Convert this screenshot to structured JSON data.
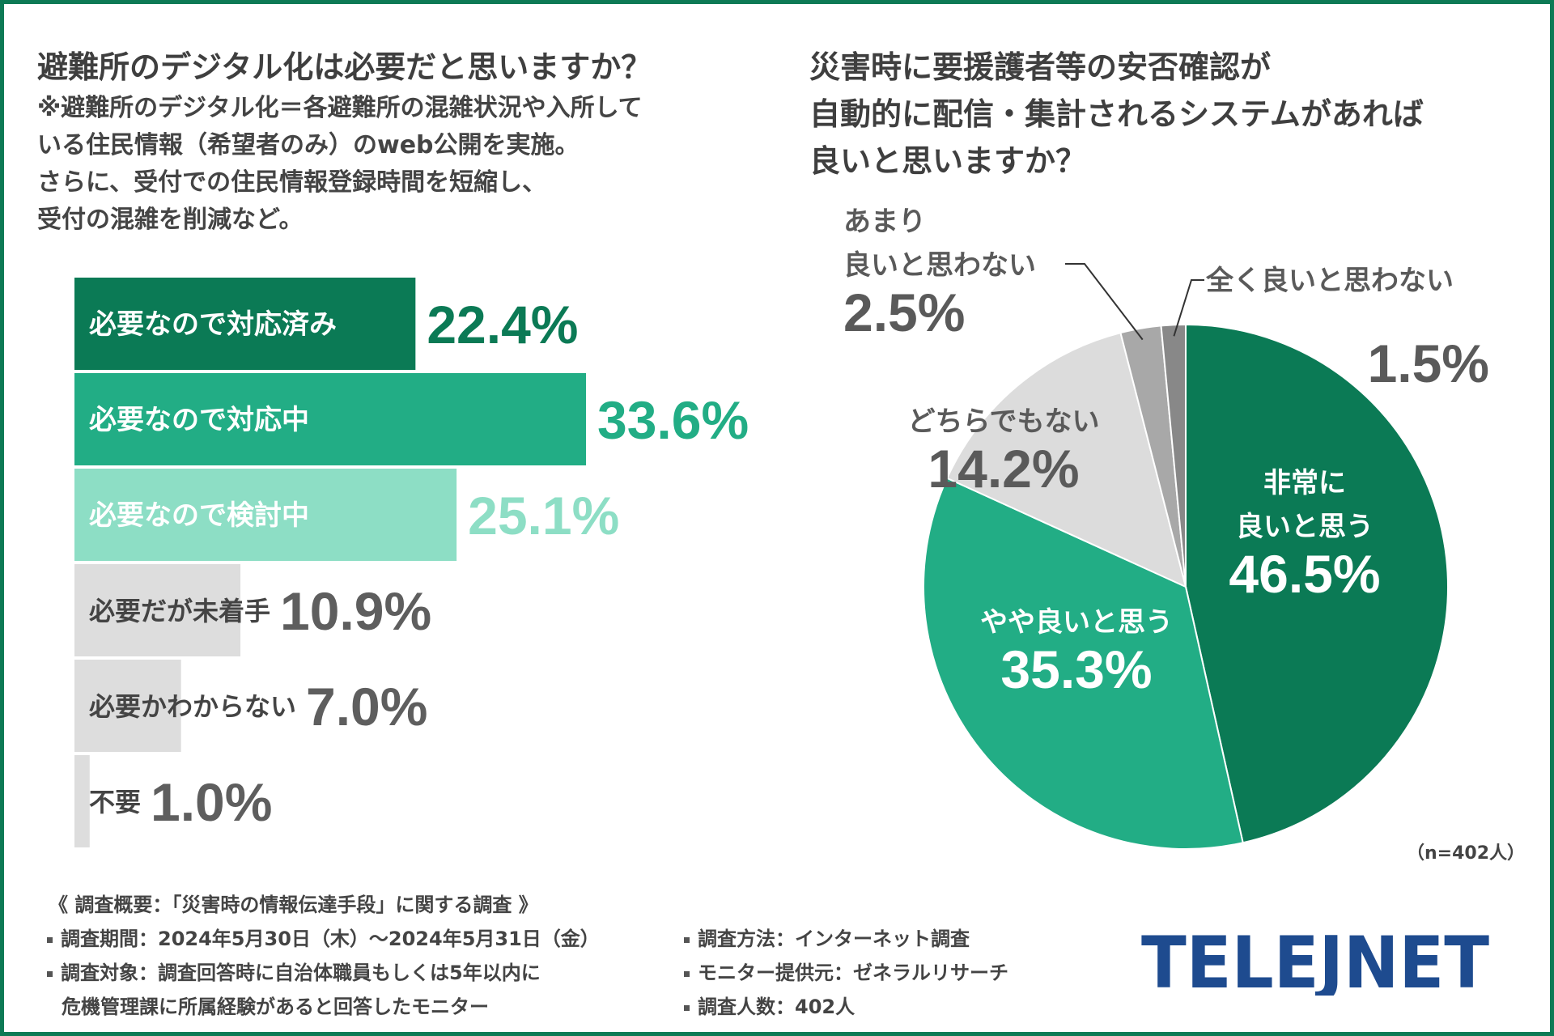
{
  "left_title": "避難所のデジタル化は必要だと思いますか？",
  "left_note": [
    "※避難所のデジタル化＝各避難所の混雑状況や入所して",
    "いる住民情報（希望者のみ）のweb公開を実施。",
    "さらに、受付での住民情報登録時間を短縮し、",
    "受付の混雑を削減など。"
  ],
  "right_title": [
    "災害時に要援護者等の安否確認が",
    "自動的に配信・集計されるシステムがあれば",
    "良いと思いますか？"
  ],
  "sample_note": "（n=402人）",
  "footer": {
    "heading": "《 調査概要：「災害時の情報伝達手段」に関する調査 》",
    "period": "調査期間：2024年5月30日（木）～2024年5月31日（金）",
    "target_1": "調査対象：調査回答時に自治体職員もしくは5年以内に",
    "target_2": "危機管理課に所属経験があると回答したモニター",
    "method": "調査方法：インターネット調査",
    "provider": "モニター提供元：ゼネラルリサーチ",
    "count": "調査人数：402人"
  },
  "logo_text": "TELEJNET",
  "colors": {
    "frame": "#0d7a55",
    "dark_green": "#0b7a55",
    "mid_green": "#22ad85",
    "light_green": "#8ddec5",
    "gray_bar": "#dddddd",
    "light_gray": "#dcdcdc",
    "mid_gray": "#a8a8a8",
    "dark_gray": "#888888",
    "logo": "#1e4b8f"
  },
  "chart_data": [
    {
      "type": "bar",
      "orientation": "horizontal",
      "title": "避難所のデジタル化は必要だと思いますか？",
      "categories": [
        "必要なので対応済み",
        "必要なので対応中",
        "必要なので検討中",
        "必要だが未着手",
        "必要かわからない",
        "不要"
      ],
      "values": [
        22.4,
        33.6,
        25.1,
        10.9,
        7.0,
        1.0
      ],
      "value_labels": [
        "22.4%",
        "33.6%",
        "25.1%",
        "10.9%",
        "7.0%",
        "1.0%"
      ],
      "unit": "%"
    },
    {
      "type": "pie",
      "title": "災害時に要援護者等の安否確認が自動的に配信・集計されるシステムがあれば良いと思いますか？",
      "categories": [
        "非常に良いと思う",
        "やや良いと思う",
        "どちらでもない",
        "あまり良いと思わない",
        "全く良いと思わない"
      ],
      "label_lines": [
        [
          "非常に",
          "良いと思う"
        ],
        [
          "やや良いと思う"
        ],
        [
          "どちらでもない"
        ],
        [
          "あまり",
          "良いと思わない"
        ],
        [
          "全く良いと思わない"
        ]
      ],
      "values": [
        46.5,
        35.3,
        14.2,
        2.5,
        1.5
      ],
      "value_labels": [
        "46.5%",
        "35.3%",
        "14.2%",
        "2.5%",
        "1.5%"
      ],
      "unit": "%",
      "n": 402
    }
  ]
}
